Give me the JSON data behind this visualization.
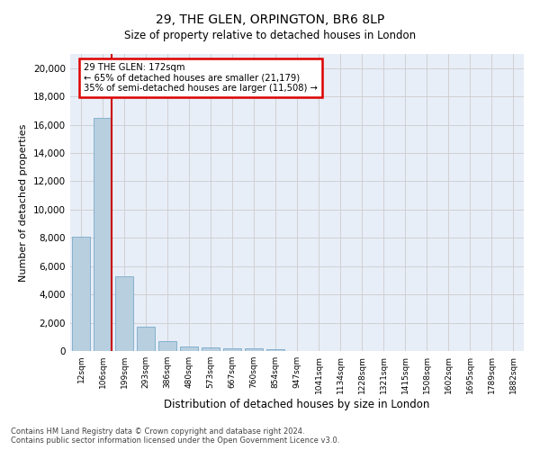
{
  "title": "29, THE GLEN, ORPINGTON, BR6 8LP",
  "subtitle": "Size of property relative to detached houses in London",
  "xlabel": "Distribution of detached houses by size in London",
  "ylabel": "Number of detached properties",
  "categories": [
    "12sqm",
    "106sqm",
    "199sqm",
    "293sqm",
    "386sqm",
    "480sqm",
    "573sqm",
    "667sqm",
    "760sqm",
    "854sqm",
    "947sqm",
    "1041sqm",
    "1134sqm",
    "1228sqm",
    "1321sqm",
    "1415sqm",
    "1508sqm",
    "1602sqm",
    "1695sqm",
    "1789sqm",
    "1882sqm"
  ],
  "values": [
    8100,
    16500,
    5300,
    1750,
    700,
    350,
    250,
    200,
    175,
    150,
    0,
    0,
    0,
    0,
    0,
    0,
    0,
    0,
    0,
    0,
    0
  ],
  "bar_color": "#b8cfe0",
  "bar_edge_color": "#7aaac8",
  "annotation_text": "29 THE GLEN: 172sqm\n← 65% of detached houses are smaller (21,179)\n35% of semi-detached houses are larger (11,508) →",
  "annotation_box_color": "#ffffff",
  "annotation_box_edge_color": "#dd0000",
  "vline_color": "#cc0000",
  "vline_x": 1.4,
  "ylim": [
    0,
    21000
  ],
  "yticks": [
    0,
    2000,
    4000,
    6000,
    8000,
    10000,
    12000,
    14000,
    16000,
    18000,
    20000
  ],
  "grid_color": "#cccccc",
  "background_color": "#e8eef8",
  "footer_line1": "Contains HM Land Registry data © Crown copyright and database right 2024.",
  "footer_line2": "Contains public sector information licensed under the Open Government Licence v3.0."
}
